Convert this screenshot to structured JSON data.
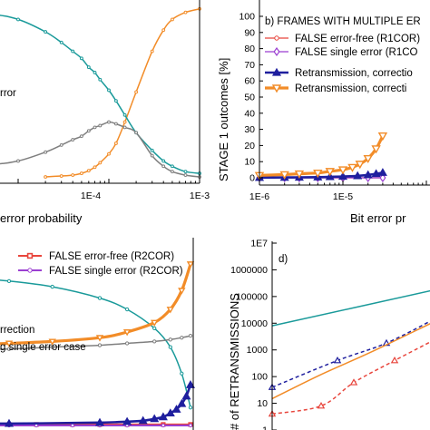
{
  "chart_data": [
    {
      "panel": "a",
      "type": "line",
      "xscale": "log",
      "xlim": [
        "1E-6",
        "1E-3"
      ],
      "xlabel_visible": "error probability",
      "xticklabels": [
        "1E-4",
        "1E-3"
      ],
      "notes": [
        "rror"
      ],
      "series": [
        {
          "color": "#f28c28",
          "marker": "circle",
          "x": [
            2e-05,
            3e-05,
            4e-05,
            5e-05,
            6e-05,
            7e-05,
            8e-05,
            0.0001,
            0.00012,
            0.00015,
            0.0002,
            0.0003,
            0.0004,
            0.0005,
            0.0007,
            0.001
          ],
          "values": [
            0,
            0.5,
            1,
            2,
            3.5,
            5.5,
            8,
            13,
            19,
            31,
            48,
            71,
            83,
            89,
            93,
            95
          ]
        },
        {
          "color": "#1a9a9a",
          "marker": "circle",
          "x": [
            1e-06,
            5e-06,
            1e-05,
            2e-05,
            3e-05,
            4e-05,
            5e-05,
            6e-05,
            7e-05,
            8e-05,
            0.0001,
            0.00012,
            0.00015,
            0.0002,
            0.0003,
            0.0004,
            0.0005,
            0.0007,
            0.001
          ],
          "values": [
            95,
            92,
            89,
            82,
            76,
            71,
            67,
            62,
            59,
            55,
            49,
            43,
            35,
            25,
            15,
            9,
            6,
            3,
            2
          ]
        },
        {
          "color": "#7f7f7f",
          "marker": "circle",
          "x": [
            1e-06,
            5e-06,
            1e-05,
            2e-05,
            3e-05,
            4e-05,
            5e-05,
            6e-05,
            7e-05,
            8e-05,
            0.0001,
            0.00012,
            0.00015,
            0.0002,
            0.0003,
            0.0004,
            0.0005,
            0.0007,
            0.001
          ],
          "values": [
            5,
            7,
            9,
            14,
            18,
            21,
            23,
            26,
            28,
            29,
            31,
            30,
            28,
            25,
            12,
            6,
            3,
            1,
            0
          ]
        }
      ]
    },
    {
      "panel": "b",
      "type": "line",
      "xscale": "log",
      "xlim": [
        "1E-6",
        "1E-4"
      ],
      "ylim": [
        0,
        100
      ],
      "title": "b) FRAMES WITH MULTIPLE ER",
      "ylabel": "STAGE 1 outcomes [%]",
      "xlabel": "Bit error pr",
      "xticklabels": [
        "1E-6",
        "1E-5"
      ],
      "yticks": [
        0,
        10,
        20,
        30,
        40,
        50,
        60,
        70,
        80,
        90,
        100
      ],
      "legend": [
        "FALSE error-free (R1COR)",
        "FALSE single error (R1CO",
        "Retransmission, correctio",
        "Retransmission,  correcti"
      ],
      "series": [
        {
          "legend_index": 0,
          "color": "#e8453c",
          "marker": "circle-open",
          "x": [
            1e-06,
            2e-06,
            3e-06,
            5e-06,
            1e-05,
            2e-05,
            3e-05
          ],
          "values": [
            0,
            0,
            0,
            0,
            0,
            0,
            0
          ]
        },
        {
          "legend_index": 1,
          "color": "#9b3fd1",
          "marker": "diamond-open",
          "x": [
            1e-06,
            2e-06,
            3e-06,
            5e-06,
            1e-05,
            2e-05,
            3e-05
          ],
          "values": [
            0,
            0,
            0,
            0,
            0,
            0,
            0
          ]
        },
        {
          "legend_index": 2,
          "color": "#1f1f9e",
          "marker": "triangle-up",
          "x": [
            1e-06,
            2e-06,
            3e-06,
            5e-06,
            7e-06,
            1e-05,
            1.5e-05,
            2e-05,
            2.5e-05,
            3e-05
          ],
          "values": [
            0.1,
            0.2,
            0.3,
            0.4,
            0.6,
            0.8,
            1.2,
            1.8,
            2.5,
            3.2
          ]
        },
        {
          "legend_index": 3,
          "color": "#f28c28",
          "marker": "triangle-down",
          "x": [
            1e-06,
            2e-06,
            3e-06,
            5e-06,
            7e-06,
            1e-05,
            1.3e-05,
            1.6e-05,
            2e-05,
            2.5e-05,
            3e-05
          ],
          "values": [
            1.5,
            2,
            2.5,
            3,
            4,
            5,
            6.5,
            8.5,
            12,
            18,
            26
          ]
        }
      ]
    },
    {
      "panel": "c",
      "type": "line",
      "xscale": "log",
      "legend": [
        "FALSE error-free (R2COR)",
        "FALSE single error (R2COR)"
      ],
      "notes": [
        "rrection",
        "g single error case"
      ],
      "series": [
        {
          "legend_index": 0,
          "color": "#e8453c",
          "marker": "square-open",
          "x": [
            1e-06,
            2e-06,
            5e-06,
            1e-05,
            2e-05,
            5e-05,
            0.0001,
            0.0002,
            0.0005,
            0.001
          ],
          "values": [
            1,
            1,
            1,
            1,
            1,
            1,
            1,
            1,
            1,
            1
          ]
        },
        {
          "legend_index": 1,
          "color": "#9b3fd1",
          "marker": "circle-open",
          "x": [
            1e-06,
            2e-06,
            5e-06,
            1e-05,
            2e-05,
            5e-05,
            0.0001,
            0.0002,
            0.0005,
            0.001
          ],
          "values": [
            0.5,
            0.5,
            0.5,
            0.5,
            0.5,
            0.5,
            0.5,
            0.5,
            0.5,
            0.5
          ]
        },
        {
          "color": "#1a9a9a",
          "marker": "circle-open",
          "x": [
            1e-06,
            3e-06,
            1e-05,
            3e-05,
            0.0001,
            0.0002,
            0.0004,
            0.0006,
            0.0008,
            0.001
          ],
          "values": [
            80,
            79,
            77,
            74,
            68,
            62,
            52,
            42,
            28,
            10
          ]
        },
        {
          "color": "#f28c28",
          "marker": "triangle-down",
          "x": [
            1e-06,
            3e-06,
            1e-05,
            3e-05,
            0.0001,
            0.0002,
            0.0004,
            0.0006,
            0.0008,
            0.001
          ],
          "values": [
            42,
            43,
            44,
            45,
            47,
            50,
            55,
            62,
            72,
            86
          ]
        },
        {
          "color": "#7f7f7f",
          "marker": "circle-open",
          "x": [
            1e-06,
            3e-06,
            1e-05,
            3e-05,
            0.0001,
            0.0002,
            0.0004,
            0.0006,
            0.0008,
            0.001
          ],
          "values": [
            40,
            40.5,
            41,
            42,
            43,
            44,
            45,
            46,
            47,
            48
          ]
        },
        {
          "color": "#1f1f9e",
          "marker": "triangle-up",
          "x": [
            1e-06,
            1e-05,
            0.0001,
            0.0002,
            0.0003,
            0.0004,
            0.0005,
            0.0006,
            0.0007,
            0.0008,
            0.0009,
            0.001
          ],
          "values": [
            1.5,
            1.5,
            2,
            2.5,
            3,
            4,
            5,
            7,
            9,
            12,
            16,
            22
          ]
        }
      ]
    },
    {
      "panel": "d",
      "type": "line",
      "title": "d)",
      "yscale": "log",
      "ylabel": "# of RETRANSMISSIONS",
      "yticklabels": [
        "1E7",
        "1000000",
        "100000",
        "10000",
        "1000",
        "100",
        "10",
        "1"
      ],
      "series": [
        {
          "color": "#1a9a9a",
          "style": "solid",
          "x": [
            0,
            1
          ],
          "values": [
            8000,
            180000
          ]
        },
        {
          "color": "#1f1f9e",
          "style": "dashed",
          "marker": "triangle-up-open",
          "x": [
            0,
            0.4,
            0.7,
            1
          ],
          "values": [
            40,
            400,
            1800,
            15000
          ]
        },
        {
          "color": "#f28c28",
          "style": "solid",
          "x": [
            0,
            0.3,
            0.6,
            1
          ],
          "values": [
            15,
            120,
            800,
            12000
          ]
        },
        {
          "color": "#e8453c",
          "style": "dashed",
          "marker": "triangle-up-open",
          "x": [
            0,
            0.3,
            0.5,
            0.75,
            1
          ],
          "values": [
            4,
            8,
            60,
            400,
            2500
          ]
        }
      ]
    }
  ]
}
